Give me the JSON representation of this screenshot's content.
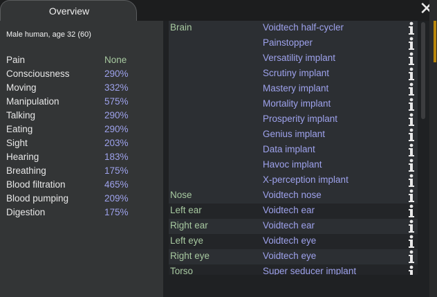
{
  "tab": {
    "label": "Overview"
  },
  "summary": "Male human, age 32 (60)",
  "colors": {
    "neutral": "#a7c9a0",
    "boosted": "#9ea2ec",
    "part": "#a7c9a0"
  },
  "capacities": [
    {
      "name": "Pain",
      "value": "None",
      "color": "#a7c9a0"
    },
    {
      "name": "Consciousness",
      "value": "290%",
      "color": "#9ea2ec"
    },
    {
      "name": "Moving",
      "value": "332%",
      "color": "#9ea2ec"
    },
    {
      "name": "Manipulation",
      "value": "575%",
      "color": "#9ea2ec"
    },
    {
      "name": "Talking",
      "value": "290%",
      "color": "#9ea2ec"
    },
    {
      "name": "Eating",
      "value": "290%",
      "color": "#9ea2ec"
    },
    {
      "name": "Sight",
      "value": "203%",
      "color": "#9ea2ec"
    },
    {
      "name": "Hearing",
      "value": "183%",
      "color": "#9ea2ec"
    },
    {
      "name": "Breathing",
      "value": "175%",
      "color": "#9ea2ec"
    },
    {
      "name": "Blood filtration",
      "value": "465%",
      "color": "#9ea2ec"
    },
    {
      "name": "Blood pumping",
      "value": "209%",
      "color": "#9ea2ec"
    },
    {
      "name": "Digestion",
      "value": "175%",
      "color": "#9ea2ec"
    }
  ],
  "health_rows": [
    {
      "part": "Brain",
      "item": "Voidtech half-cycler"
    },
    {
      "part": "",
      "item": "Painstopper"
    },
    {
      "part": "",
      "item": "Versatility implant"
    },
    {
      "part": "",
      "item": "Scrutiny implant"
    },
    {
      "part": "",
      "item": "Mastery implant"
    },
    {
      "part": "",
      "item": "Mortality implant"
    },
    {
      "part": "",
      "item": "Prosperity implant"
    },
    {
      "part": "",
      "item": "Genius implant"
    },
    {
      "part": "",
      "item": "Data implant"
    },
    {
      "part": "",
      "item": "Havoc implant"
    },
    {
      "part": "",
      "item": "X-perception implant"
    },
    {
      "part": "Nose",
      "item": "Voidtech nose"
    },
    {
      "part": "Left ear",
      "item": "Voidtech ear"
    },
    {
      "part": "Right ear",
      "item": "Voidtech ear"
    },
    {
      "part": "Left eye",
      "item": "Voidtech eye"
    },
    {
      "part": "Right eye",
      "item": "Voidtech eye"
    },
    {
      "part": "Torso",
      "item": "Super seducer implant"
    }
  ],
  "icons": {
    "close": "close-icon",
    "info": "info-icon"
  }
}
